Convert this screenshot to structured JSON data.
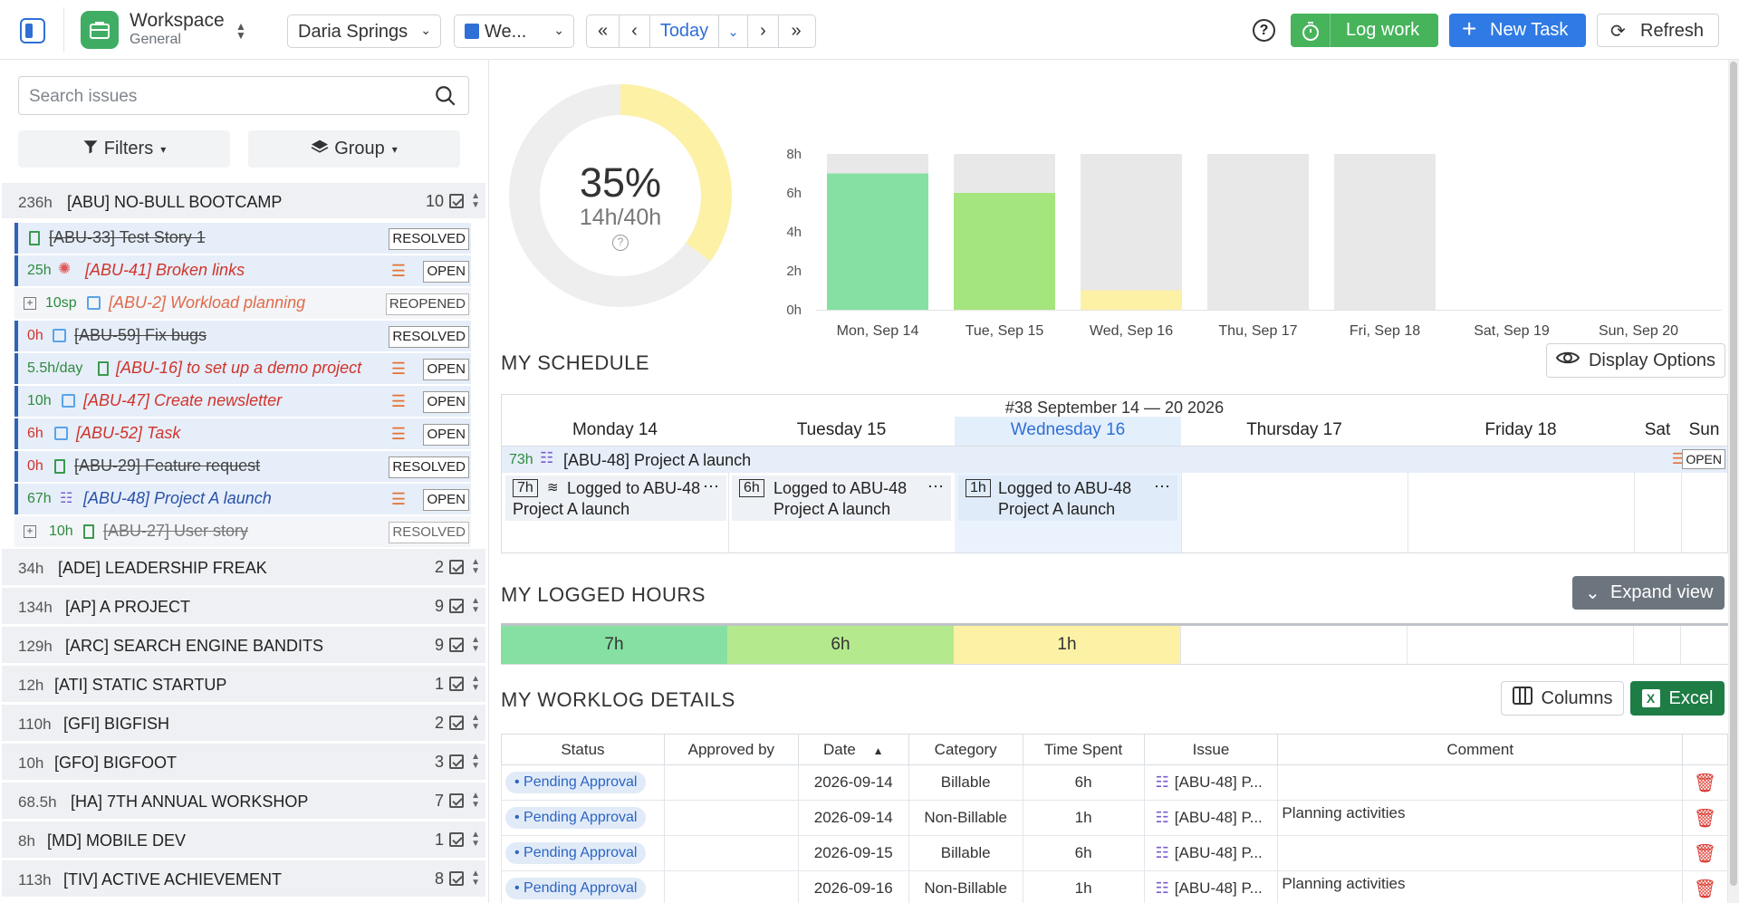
{
  "header": {
    "workspace_name": "Workspace",
    "workspace_sub": "General",
    "user_select": "Daria Springs",
    "view_select": "We...",
    "today_label": "Today",
    "log_work_label": "Log work",
    "new_task_label": "New Task",
    "refresh_label": "Refresh"
  },
  "sidebar": {
    "search_placeholder": "Search issues",
    "filters_label": "Filters",
    "group_label": "Group",
    "groups": [
      {
        "hours": "236h",
        "name": "[ABU] NO-BULL BOOTCAMP",
        "count": "10"
      },
      {
        "hours": "34h",
        "name": "[ADE] LEADERSHIP FREAK",
        "count": "2"
      },
      {
        "hours": "134h",
        "name": "[AP] A PROJECT",
        "count": "9"
      },
      {
        "hours": "129h",
        "name": "[ARC] SEARCH ENGINE BANDITS",
        "count": "9"
      },
      {
        "hours": "12h",
        "name": "[ATI] STATIC STARTUP",
        "count": "1"
      },
      {
        "hours": "110h",
        "name": "[GFI] BIGFISH",
        "count": "2"
      },
      {
        "hours": "10h",
        "name": "[GFO] BIGFOOT",
        "count": "3"
      },
      {
        "hours": "68.5h",
        "name": "[HA] 7TH ANNUAL WORKSHOP",
        "count": "7"
      },
      {
        "hours": "8h",
        "name": "[MD] MOBILE DEV",
        "count": "1"
      },
      {
        "hours": "113h",
        "name": "[TIV] ACTIVE ACHIEVEMENT",
        "count": "8"
      }
    ],
    "issues": [
      {
        "hours": "",
        "title": "[ABU-33] Test Story 1",
        "status": "RESOLVED"
      },
      {
        "hours": "25h",
        "title": "[ABU-41] Broken links",
        "status": "OPEN"
      },
      {
        "hours": "10sp",
        "title": "[ABU-2] Workload planning",
        "status": "REOPENED"
      },
      {
        "hours": "0h",
        "title": "[ABU-59] Fix bugs",
        "status": "RESOLVED"
      },
      {
        "hours": "5.5h/day",
        "title": "[ABU-16] to set up a demo project",
        "status": "OPEN"
      },
      {
        "hours": "10h",
        "title": "[ABU-47] Create newsletter",
        "status": "OPEN"
      },
      {
        "hours": "6h",
        "title": "[ABU-52] Task",
        "status": "OPEN"
      },
      {
        "hours": "0h",
        "title": "[ABU-29] Feature request",
        "status": "RESOLVED"
      },
      {
        "hours": "67h",
        "title": "[ABU-48] Project A launch",
        "status": "OPEN"
      },
      {
        "hours": "10h",
        "title": "[ABU-27] User story",
        "status": "RESOLVED"
      }
    ]
  },
  "summary": {
    "percent": "35%",
    "ratio": "14h/40h",
    "percent_value": 0.35
  },
  "chart_data": {
    "type": "bar",
    "categories": [
      "Mon, Sep 14",
      "Tue, Sep 15",
      "Wed, Sep 16",
      "Thu, Sep 17",
      "Fri, Sep 18",
      "Sat, Sep 19",
      "Sun, Sep 20"
    ],
    "series": [
      {
        "values": [
          7,
          6,
          1,
          0,
          0,
          0,
          0
        ]
      },
      {
        "values": [
          8,
          8,
          8,
          8,
          8,
          0,
          0
        ]
      }
    ],
    "y_ticks": [
      "8h",
      "6h",
      "4h",
      "2h",
      "0h"
    ],
    "ylim": [
      0,
      8
    ],
    "colors": {
      "logged_full": "#86e0a3",
      "logged_partial": "#a5e57e",
      "logged_low": "#fdf1a6",
      "capacity": "#e8e8e8"
    }
  },
  "schedule": {
    "title": "MY SCHEDULE",
    "display_options": "Display Options",
    "week_title": "#38 September 14 — 20 2026",
    "days": [
      "Monday 14",
      "Tuesday 15",
      "Wednesday 16",
      "Thursday 17",
      "Friday 18",
      "Sat",
      "Sun"
    ],
    "task_hours": "73h",
    "task_title": "[ABU-48] Project A launch",
    "task_status": "OPEN",
    "entries": [
      {
        "hours": "7h",
        "line1": "Logged to ABU-48",
        "line2": "Project A launch"
      },
      {
        "hours": "6h",
        "line1": "Logged to ABU-48",
        "line2": "Project A launch"
      },
      {
        "hours": "1h",
        "line1": "Logged to ABU-48",
        "line2": "Project A launch"
      }
    ]
  },
  "logged": {
    "title": "MY LOGGED HOURS",
    "expand": "Expand view",
    "values": [
      "7h",
      "6h",
      "1h"
    ]
  },
  "worklog": {
    "title": "MY WORKLOG DETAILS",
    "columns_btn": "Columns",
    "excel_btn": "Excel",
    "headers": [
      "Status",
      "Approved by",
      "Date",
      "Category",
      "Time Spent",
      "Issue",
      "Comment"
    ],
    "rows": [
      {
        "status": "Pending Approval",
        "approved": "",
        "date": "2026-09-14",
        "category": "Billable",
        "time": "6h",
        "issue": "[ABU-48] P...",
        "comment": ""
      },
      {
        "status": "Pending Approval",
        "approved": "",
        "date": "2026-09-14",
        "category": "Non-Billable",
        "time": "1h",
        "issue": "[ABU-48] P...",
        "comment": "Planning activities"
      },
      {
        "status": "Pending Approval",
        "approved": "",
        "date": "2026-09-15",
        "category": "Billable",
        "time": "6h",
        "issue": "[ABU-48] P...",
        "comment": ""
      },
      {
        "status": "Pending Approval",
        "approved": "",
        "date": "2026-09-16",
        "category": "Non-Billable",
        "time": "1h",
        "issue": "[ABU-48] P...",
        "comment": "Planning activities"
      }
    ]
  }
}
